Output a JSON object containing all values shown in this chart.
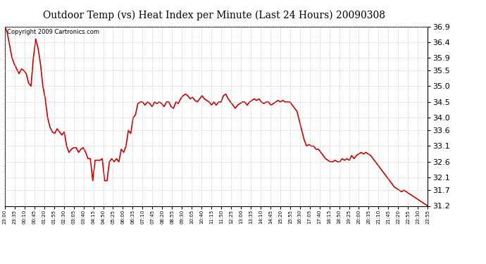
{
  "title": "Outdoor Temp (vs) Heat Index per Minute (Last 24 Hours) 20090308",
  "copyright_text": "Copyright 2009 Cartronics.com",
  "background_color": "#ffffff",
  "plot_bg_color": "#ffffff",
  "line_color": "#cc0000",
  "line_width": 1.2,
  "ylim": [
    31.2,
    36.9
  ],
  "yticks": [
    31.2,
    31.7,
    32.1,
    32.6,
    33.1,
    33.6,
    34.0,
    34.5,
    35.0,
    35.5,
    35.9,
    36.4,
    36.9
  ],
  "grid_color": "#bbbbbb",
  "grid_style": ":",
  "xtick_labels": [
    "23:00",
    "23:35",
    "00:10",
    "00:45",
    "01:20",
    "01:55",
    "02:30",
    "03:05",
    "03:40",
    "04:15",
    "04:50",
    "05:25",
    "06:00",
    "06:35",
    "07:10",
    "07:45",
    "08:20",
    "08:55",
    "09:30",
    "10:05",
    "10:40",
    "11:15",
    "11:50",
    "12:25",
    "13:00",
    "13:35",
    "14:10",
    "14:45",
    "15:20",
    "15:55",
    "16:30",
    "17:05",
    "17:40",
    "18:15",
    "18:50",
    "19:25",
    "20:00",
    "20:35",
    "21:10",
    "21:45",
    "22:20",
    "22:55",
    "23:30",
    "23:55"
  ],
  "data_y": [
    36.9,
    36.7,
    36.3,
    35.9,
    35.7,
    35.55,
    35.4,
    35.55,
    35.5,
    35.4,
    35.1,
    35.0,
    35.9,
    36.5,
    36.2,
    35.7,
    35.0,
    34.6,
    34.0,
    33.7,
    33.55,
    33.5,
    33.65,
    33.55,
    33.45,
    33.55,
    33.1,
    32.9,
    33.0,
    33.05,
    33.05,
    32.9,
    33.0,
    33.05,
    32.9,
    32.7,
    32.7,
    32.0,
    32.65,
    32.65,
    32.65,
    32.7,
    32.0,
    32.0,
    32.6,
    32.7,
    32.6,
    32.7,
    32.6,
    33.0,
    32.9,
    33.1,
    33.6,
    33.5,
    34.0,
    34.1,
    34.45,
    34.5,
    34.5,
    34.4,
    34.5,
    34.45,
    34.35,
    34.5,
    34.45,
    34.5,
    34.45,
    34.35,
    34.5,
    34.5,
    34.35,
    34.3,
    34.5,
    34.45,
    34.6,
    34.7,
    34.75,
    34.7,
    34.6,
    34.65,
    34.55,
    34.5,
    34.6,
    34.7,
    34.6,
    34.55,
    34.5,
    34.4,
    34.5,
    34.4,
    34.5,
    34.5,
    34.7,
    34.75,
    34.6,
    34.5,
    34.4,
    34.3,
    34.4,
    34.45,
    34.5,
    34.5,
    34.4,
    34.5,
    34.55,
    34.6,
    34.55,
    34.6,
    34.5,
    34.45,
    34.5,
    34.5,
    34.4,
    34.45,
    34.5,
    34.55,
    34.5,
    34.55,
    34.5,
    34.5,
    34.5,
    34.4,
    34.3,
    34.2,
    33.9,
    33.6,
    33.3,
    33.1,
    33.15,
    33.1,
    33.1,
    33.0,
    33.0,
    32.9,
    32.8,
    32.7,
    32.65,
    32.6,
    32.6,
    32.65,
    32.6,
    32.6,
    32.7,
    32.65,
    32.7,
    32.65,
    32.8,
    32.7,
    32.8,
    32.85,
    32.9,
    32.85,
    32.9,
    32.85,
    32.8,
    32.7,
    32.6,
    32.5,
    32.4,
    32.3,
    32.2,
    32.1,
    32.0,
    31.9,
    31.8,
    31.75,
    31.7,
    31.65,
    31.7,
    31.65,
    31.6,
    31.55,
    31.5,
    31.45,
    31.4,
    31.35,
    31.3,
    31.25,
    31.2
  ],
  "title_fontsize": 10,
  "ytick_fontsize": 8,
  "xtick_fontsize": 5,
  "copyright_fontsize": 6
}
